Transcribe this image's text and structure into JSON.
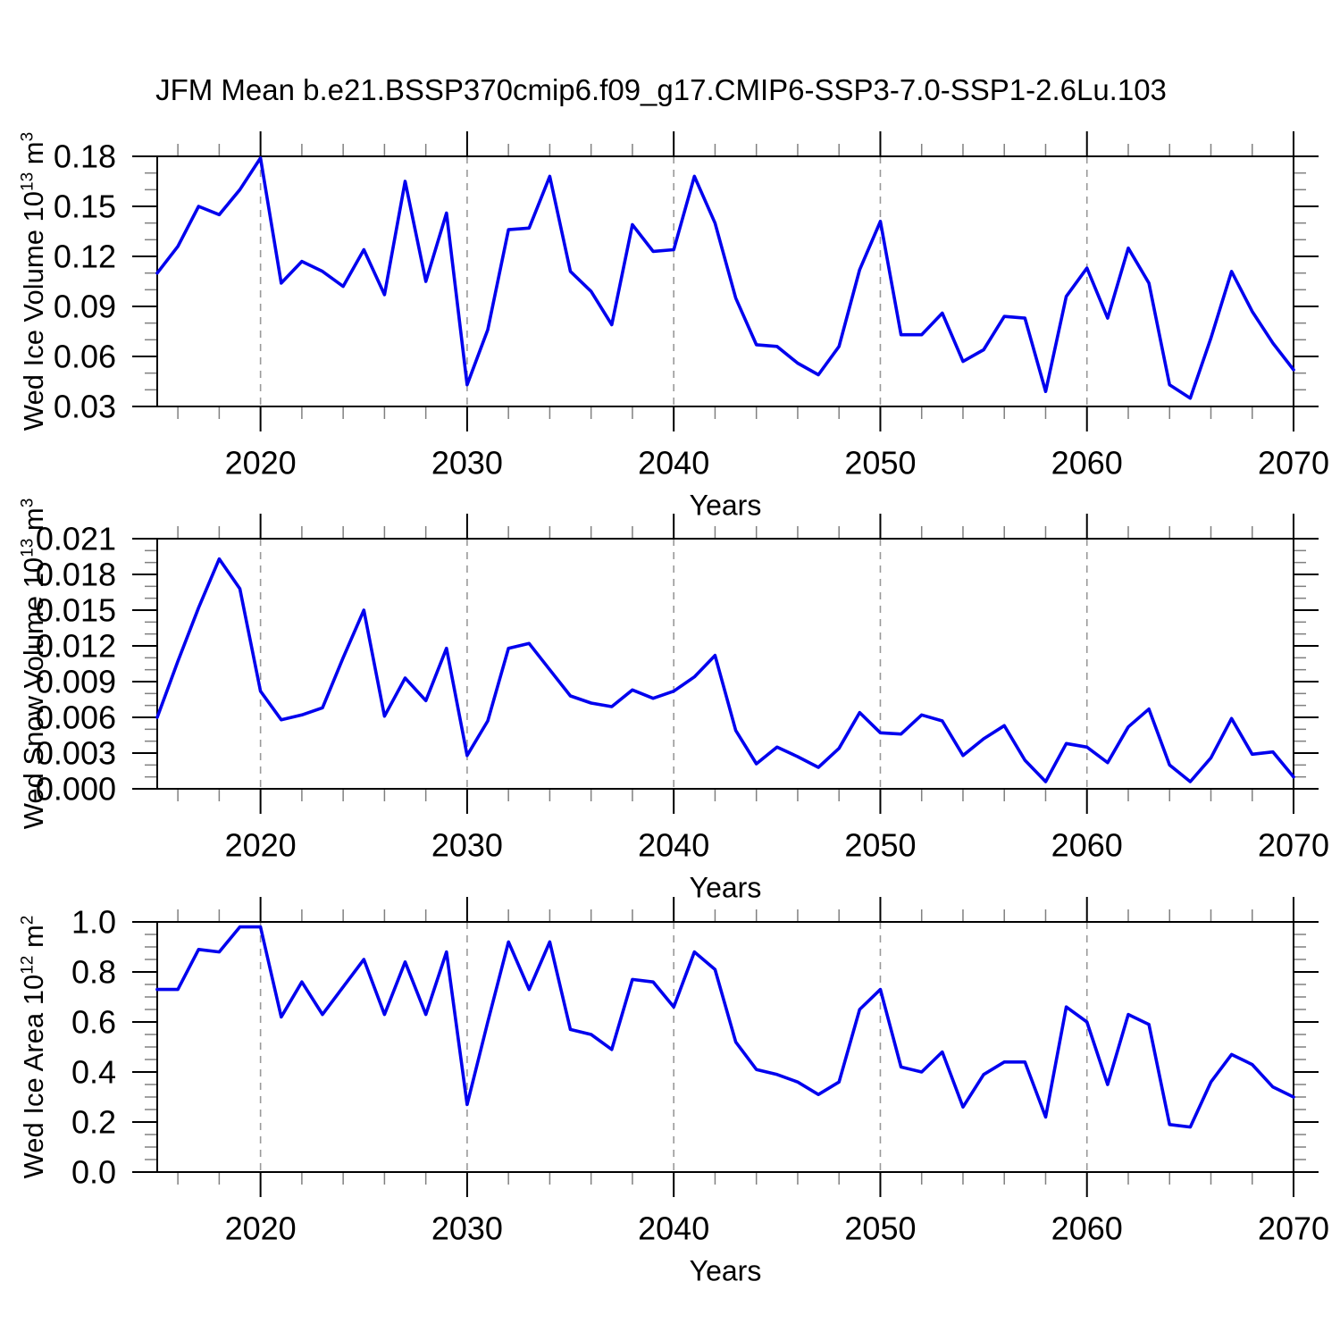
{
  "chart_data": {
    "type": "line",
    "title": "JFM Mean b.e21.BSSP370cmip6.f09_g17.CMIP6-SSP3-7.0-SSP1-2.6Lu.103",
    "xlabel": "Years",
    "xlim": [
      2015,
      2070
    ],
    "xticks_major": [
      2020,
      2030,
      2040,
      2050,
      2060,
      2070
    ],
    "xtick_labels": [
      "2020",
      "2030",
      "2040",
      "2050",
      "2060",
      "2070"
    ],
    "xminor_step": 2,
    "grid_x": [
      2020,
      2030,
      2040,
      2050,
      2060
    ],
    "grid_style": "dashed",
    "line_color": "#0000EE",
    "grid_color": "#999999",
    "minor_tick_color": "#808080",
    "x": [
      2015,
      2016,
      2017,
      2018,
      2019,
      2020,
      2021,
      2022,
      2023,
      2024,
      2025,
      2026,
      2027,
      2028,
      2029,
      2030,
      2031,
      2032,
      2033,
      2034,
      2035,
      2036,
      2037,
      2038,
      2039,
      2040,
      2041,
      2042,
      2043,
      2044,
      2045,
      2046,
      2047,
      2048,
      2049,
      2050,
      2051,
      2052,
      2053,
      2054,
      2055,
      2056,
      2057,
      2058,
      2059,
      2060,
      2061,
      2062,
      2063,
      2064,
      2065,
      2066,
      2067,
      2068,
      2069,
      2070
    ],
    "panels": [
      {
        "id": "ice-volume",
        "name": "Wed Ice Volume",
        "ylabel_prefix": "Wed Ice Volume 10",
        "ylabel_exp": "13",
        "ylabel_unit": " m",
        "ylabel_unit_exp": "3",
        "ylim": [
          0.03,
          0.18
        ],
        "yticks_major": [
          0.03,
          0.06,
          0.09,
          0.12,
          0.15,
          0.18
        ],
        "ytick_labels": [
          "0.03",
          "0.06",
          "0.09",
          "0.12",
          "0.15",
          "0.18"
        ],
        "yminor_step": 0.01,
        "values": [
          0.11,
          0.126,
          0.15,
          0.145,
          0.16,
          0.179,
          0.104,
          0.117,
          0.111,
          0.102,
          0.124,
          0.097,
          0.165,
          0.105,
          0.146,
          0.043,
          0.076,
          0.136,
          0.137,
          0.168,
          0.111,
          0.099,
          0.079,
          0.139,
          0.123,
          0.124,
          0.168,
          0.14,
          0.095,
          0.067,
          0.066,
          0.056,
          0.049,
          0.066,
          0.112,
          0.141,
          0.073,
          0.073,
          0.086,
          0.057,
          0.064,
          0.084,
          0.083,
          0.039,
          0.096,
          0.113,
          0.083,
          0.125,
          0.104,
          0.043,
          0.035,
          0.071,
          0.111,
          0.087,
          0.068,
          0.052
        ]
      },
      {
        "id": "snow-volume",
        "name": "Wed Snow Volume",
        "ylabel_prefix": "Wed Snow Volume 10",
        "ylabel_exp": "13",
        "ylabel_unit": " m",
        "ylabel_unit_exp": "3",
        "ylim": [
          0.0,
          0.021
        ],
        "yticks_major": [
          0.0,
          0.003,
          0.006,
          0.009,
          0.012,
          0.015,
          0.018,
          0.021
        ],
        "ytick_labels": [
          "0.000",
          "0.003",
          "0.006",
          "0.009",
          "0.012",
          "0.015",
          "0.018",
          "0.021"
        ],
        "yminor_step": 0.001,
        "values": [
          0.006,
          0.0107,
          0.0152,
          0.0193,
          0.0168,
          0.0082,
          0.0058,
          0.0062,
          0.0068,
          0.011,
          0.015,
          0.0061,
          0.0093,
          0.0074,
          0.0118,
          0.0028,
          0.0057,
          0.0118,
          0.0122,
          0.01,
          0.0078,
          0.0072,
          0.0069,
          0.0083,
          0.0076,
          0.0082,
          0.0094,
          0.0112,
          0.0049,
          0.0021,
          0.0035,
          0.0027,
          0.0018,
          0.0034,
          0.0064,
          0.0047,
          0.0046,
          0.0062,
          0.0057,
          0.0028,
          0.0042,
          0.0053,
          0.0024,
          0.0006,
          0.0038,
          0.0035,
          0.0022,
          0.0052,
          0.0067,
          0.002,
          0.0006,
          0.0026,
          0.0059,
          0.0029,
          0.0031,
          0.001
        ]
      },
      {
        "id": "ice-area",
        "name": "Wed Ice Area",
        "ylabel_prefix": "Wed Ice Area 10",
        "ylabel_exp": "12",
        "ylabel_unit": " m",
        "ylabel_unit_exp": "2",
        "ylim": [
          0.0,
          1.0
        ],
        "yticks_major": [
          0.0,
          0.2,
          0.4,
          0.6,
          0.8,
          1.0
        ],
        "ytick_labels": [
          "0.0",
          "0.2",
          "0.4",
          "0.6",
          "0.8",
          "1.0"
        ],
        "yminor_step": 0.05,
        "values": [
          0.73,
          0.73,
          0.89,
          0.88,
          0.98,
          0.98,
          0.62,
          0.76,
          0.63,
          0.74,
          0.85,
          0.63,
          0.84,
          0.63,
          0.88,
          0.27,
          0.6,
          0.92,
          0.73,
          0.92,
          0.57,
          0.55,
          0.49,
          0.77,
          0.76,
          0.66,
          0.88,
          0.81,
          0.52,
          0.41,
          0.39,
          0.36,
          0.31,
          0.36,
          0.65,
          0.73,
          0.42,
          0.4,
          0.48,
          0.26,
          0.39,
          0.44,
          0.44,
          0.22,
          0.66,
          0.6,
          0.35,
          0.63,
          0.59,
          0.19,
          0.18,
          0.36,
          0.47,
          0.43,
          0.34,
          0.3
        ]
      }
    ]
  }
}
